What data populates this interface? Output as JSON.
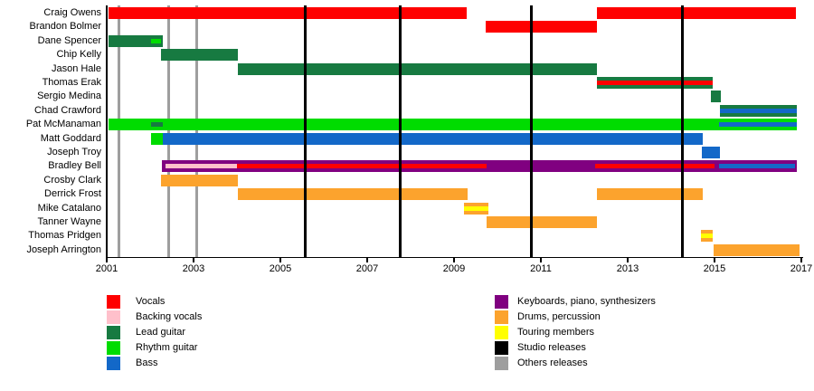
{
  "chart_data": {
    "type": "timeline",
    "x_axis": {
      "start": 2001,
      "end": 2017,
      "tick_years": [
        2001,
        2003,
        2005,
        2007,
        2009,
        2011,
        2013,
        2015,
        2017
      ]
    },
    "colors": {
      "vocals": "#fe0000",
      "backing_vocals": "#ffc0cb",
      "lead_guitar": "#177a41",
      "rhythm_guitar": "#00dc00",
      "bass": "#1368c8",
      "keyboards": "#800080",
      "drums": "#fca32d",
      "touring": "#ffff00",
      "studio": "#000000",
      "others": "#9e9e9e"
    },
    "members": [
      {
        "name": "Craig Owens",
        "segments": [
          {
            "role": "vocals",
            "from": 2001.05,
            "to": 2009.29
          },
          {
            "role": "vocals",
            "from": 2012.29,
            "to": 2016.88
          }
        ]
      },
      {
        "name": "Brandon Bolmer",
        "segments": [
          {
            "role": "vocals",
            "from": 2009.73,
            "to": 2012.29
          }
        ]
      },
      {
        "name": "Dane Spencer",
        "segments": [
          {
            "role": "lead_guitar",
            "from": 2001.05,
            "to": 2002.29,
            "stripes": [
              {
                "role": "rhythm_guitar",
                "from": 2002.02,
                "to": 2002.25
              }
            ]
          }
        ]
      },
      {
        "name": "Chip Kelly",
        "segments": [
          {
            "role": "lead_guitar",
            "from": 2002.25,
            "to": 2004.02
          }
        ]
      },
      {
        "name": "Jason Hale",
        "segments": [
          {
            "role": "lead_guitar",
            "from": 2004.02,
            "to": 2012.29
          }
        ]
      },
      {
        "name": "Thomas Erak",
        "segments": [
          {
            "role": "lead_guitar",
            "from": 2012.29,
            "to": 2014.96,
            "stripes": [
              {
                "role": "vocals",
                "from": 2012.29,
                "to": 2014.96
              }
            ]
          }
        ]
      },
      {
        "name": "Sergio Medina",
        "segments": [
          {
            "role": "lead_guitar",
            "from": 2014.92,
            "to": 2015.15
          }
        ]
      },
      {
        "name": "Chad Crawford",
        "segments": [
          {
            "role": "lead_guitar",
            "from": 2015.13,
            "to": 2016.9,
            "stripes": [
              {
                "role": "bass",
                "from": 2015.13,
                "to": 2016.9
              }
            ]
          }
        ]
      },
      {
        "name": "Pat McManaman",
        "segments": [
          {
            "role": "rhythm_guitar",
            "from": 2001.05,
            "to": 2016.9,
            "stripes": [
              {
                "role": "lead_guitar",
                "from": 2002.02,
                "to": 2002.29
              },
              {
                "role": "bass",
                "from": 2015.1,
                "to": 2016.9
              }
            ]
          }
        ]
      },
      {
        "name": "Matt Goddard",
        "segments": [
          {
            "role": "rhythm_guitar",
            "from": 2002.02,
            "to": 2002.29
          },
          {
            "role": "bass",
            "from": 2002.29,
            "to": 2014.73
          }
        ]
      },
      {
        "name": "Joseph Troy",
        "segments": [
          {
            "role": "bass",
            "from": 2014.71,
            "to": 2015.13
          }
        ]
      },
      {
        "name": "Bradley Bell",
        "segments": [
          {
            "role": "keyboards",
            "from": 2002.27,
            "to": 2016.9,
            "stripes": [
              {
                "role": "backing_vocals",
                "from": 2002.35,
                "to": 2004.0
              },
              {
                "role": "vocals",
                "from": 2004.0,
                "to": 2009.75
              },
              {
                "role": "vocals",
                "from": 2012.25,
                "to": 2015.0
              },
              {
                "role": "bass",
                "from": 2015.1,
                "to": 2016.85
              }
            ]
          }
        ]
      },
      {
        "name": "Crosby Clark",
        "segments": [
          {
            "role": "drums",
            "from": 2002.25,
            "to": 2004.02
          }
        ]
      },
      {
        "name": "Derrick Frost",
        "segments": [
          {
            "role": "drums",
            "from": 2004.02,
            "to": 2009.31
          },
          {
            "role": "drums",
            "from": 2012.29,
            "to": 2014.73
          }
        ]
      },
      {
        "name": "Mike Catalano",
        "segments": [
          {
            "role": "drums",
            "from": 2009.23,
            "to": 2009.79,
            "stripes": [
              {
                "role": "touring",
                "from": 2009.23,
                "to": 2009.79
              }
            ]
          }
        ]
      },
      {
        "name": "Tanner Wayne",
        "segments": [
          {
            "role": "drums",
            "from": 2009.75,
            "to": 2012.29
          }
        ]
      },
      {
        "name": "Thomas Pridgen",
        "segments": [
          {
            "role": "drums",
            "from": 2014.69,
            "to": 2014.96,
            "stripes": [
              {
                "role": "touring",
                "from": 2014.69,
                "to": 2014.96
              }
            ]
          }
        ]
      },
      {
        "name": "Joseph Arrington",
        "segments": [
          {
            "role": "drums",
            "from": 2014.98,
            "to": 2016.96
          }
        ]
      }
    ],
    "release_lines": {
      "studio": [
        2005.58,
        2007.75,
        2010.79,
        2014.27
      ],
      "others": [
        2001.29,
        2002.42,
        2003.08
      ]
    },
    "legend": {
      "left": [
        {
          "label": "Vocals",
          "color": "vocals"
        },
        {
          "label": "Backing vocals",
          "color": "backing_vocals"
        },
        {
          "label": "Lead guitar",
          "color": "lead_guitar"
        },
        {
          "label": "Rhythm guitar",
          "color": "rhythm_guitar"
        },
        {
          "label": "Bass",
          "color": "bass"
        }
      ],
      "right": [
        {
          "label": "Keyboards, piano, synthesizers",
          "color": "keyboards"
        },
        {
          "label": "Drums, percussion",
          "color": "drums"
        },
        {
          "label": "Touring members",
          "color": "touring"
        },
        {
          "label": "Studio releases",
          "color": "studio"
        },
        {
          "label": "Others releases",
          "color": "others"
        }
      ]
    }
  }
}
